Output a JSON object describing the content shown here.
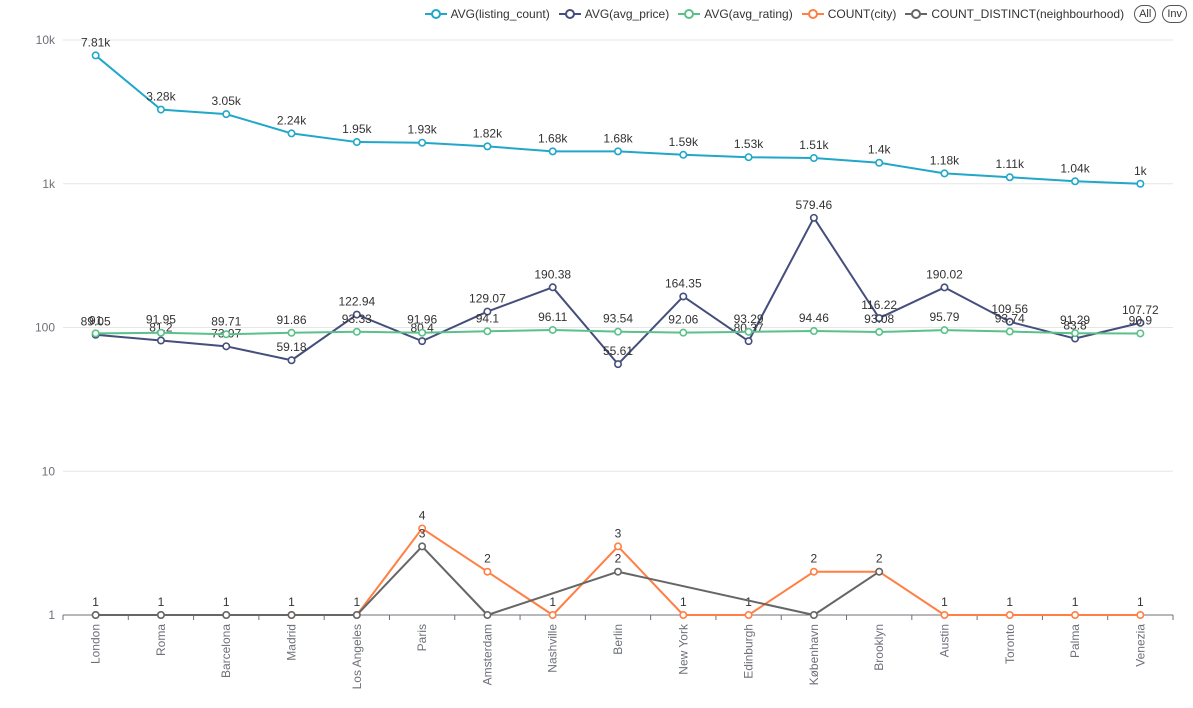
{
  "chart_data": {
    "type": "line",
    "yscale": "log",
    "ylim": [
      1,
      10000
    ],
    "yticks": [
      {
        "v": 1,
        "label": "1"
      },
      {
        "v": 10,
        "label": "10"
      },
      {
        "v": 100,
        "label": "100"
      },
      {
        "v": 1000,
        "label": "1k"
      },
      {
        "v": 10000,
        "label": "10k"
      }
    ],
    "grid": true,
    "legend_position": "top-right",
    "categories": [
      "London",
      "Roma",
      "Barcelona",
      "Madrid",
      "Los Angeles",
      "Paris",
      "Amsterdam",
      "Nashville",
      "Berlin",
      "New York",
      "Edinburgh",
      "København",
      "Brooklyn",
      "Austin",
      "Toronto",
      "Palma",
      "Venezia"
    ],
    "series": [
      {
        "name": "AVG(listing_count)",
        "color": "#20a7c9",
        "values": [
          7810,
          3280,
          3050,
          2240,
          1950,
          1930,
          1820,
          1680,
          1680,
          1590,
          1530,
          1510,
          1400,
          1180,
          1110,
          1040,
          1000
        ],
        "labels": [
          "7.81k",
          "3.28k",
          "3.05k",
          "2.24k",
          "1.95k",
          "1.93k",
          "1.82k",
          "1.68k",
          "1.68k",
          "1.59k",
          "1.53k",
          "1.51k",
          "1.4k",
          "1.18k",
          "1.11k",
          "1.04k",
          "1k"
        ]
      },
      {
        "name": "AVG(avg_price)",
        "color": "#454e7c",
        "values": [
          89.05,
          81.2,
          73.97,
          59.18,
          122.94,
          80.4,
          129.07,
          190.38,
          55.61,
          164.35,
          80.37,
          579.46,
          116.22,
          190.02,
          109.56,
          83.8,
          107.72
        ],
        "labels": [
          "89.05",
          "81.2",
          "73.97",
          "59.18",
          "122.94",
          "80.4",
          "129.07",
          "190.38",
          "55.61",
          "164.35",
          "80.37",
          "579.46",
          "116.22",
          "190.02",
          "109.56",
          "83.8",
          "107.72"
        ]
      },
      {
        "name": "AVG(avg_rating)",
        "color": "#5ac189",
        "values": [
          91,
          91.95,
          89.71,
          91.86,
          93.33,
          91.96,
          94.1,
          96.11,
          93.54,
          92.06,
          93.29,
          94.46,
          93.08,
          95.79,
          93.74,
          91.29,
          90.9
        ],
        "labels": [
          "91",
          "91.95",
          "89.71",
          "91.86",
          "93.33",
          "91.96",
          "94.1",
          "96.11",
          "93.54",
          "92.06",
          "93.29",
          "94.46",
          "93.08",
          "95.79",
          "93.74",
          "91.29",
          "90.9"
        ]
      },
      {
        "name": "COUNT(city)",
        "color": "#ff7f44",
        "values": [
          1,
          1,
          1,
          1,
          1,
          4,
          2,
          1,
          3,
          1,
          1,
          2,
          2,
          1,
          1,
          1,
          1
        ],
        "labels": [
          "1",
          "1",
          "1",
          "1",
          "1",
          "4",
          "2",
          "1",
          "3",
          "1",
          "1",
          "2",
          "2",
          "1",
          "1",
          "1",
          "1"
        ]
      },
      {
        "name": "COUNT_DISTINCT(neighbourhood)",
        "color": "#666666",
        "values": [
          1,
          1,
          1,
          1,
          1,
          3,
          1,
          null,
          2,
          null,
          null,
          1,
          2,
          null,
          null,
          null,
          null
        ],
        "labels": [
          "",
          "",
          "",
          "",
          "",
          "3",
          "",
          "",
          "2",
          "",
          "",
          "",
          "",
          "",
          "",
          "",
          ""
        ]
      }
    ]
  },
  "legend_controls": {
    "all_label": "All",
    "invert_label": "Inv"
  }
}
